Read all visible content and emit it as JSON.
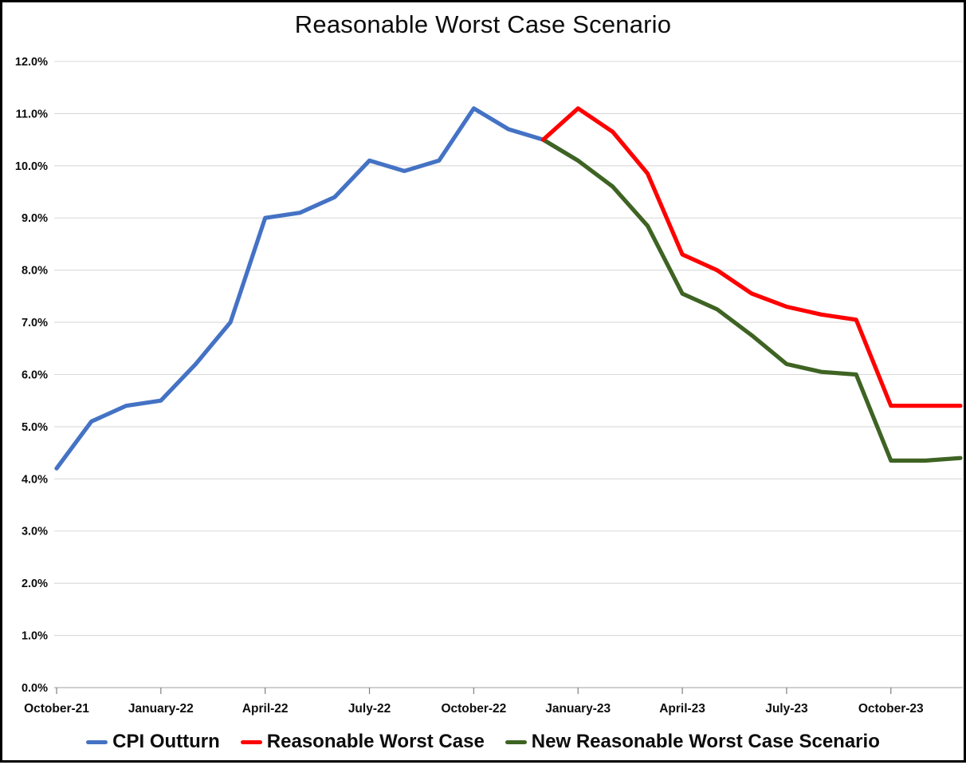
{
  "title": "Reasonable Worst Case Scenario",
  "chart_data": {
    "type": "line",
    "categories": [
      "October-21",
      "November-21",
      "December-21",
      "January-22",
      "February-22",
      "March-22",
      "April-22",
      "May-22",
      "June-22",
      "July-22",
      "August-22",
      "September-22",
      "October-22",
      "November-22",
      "December-22",
      "January-23",
      "February-23",
      "March-23",
      "April-23",
      "May-23",
      "June-23",
      "July-23",
      "August-23",
      "September-23",
      "October-23",
      "November-23",
      "December-23"
    ],
    "x_tick_labels": [
      "October-21",
      "January-22",
      "April-22",
      "July-22",
      "October-22",
      "January-23",
      "April-23",
      "July-23",
      "October-23"
    ],
    "x_tick_every": 3,
    "y_tick_labels": [
      "0.0%",
      "1.0%",
      "2.0%",
      "3.0%",
      "4.0%",
      "5.0%",
      "6.0%",
      "7.0%",
      "8.0%",
      "9.0%",
      "10.0%",
      "11.0%",
      "12.0%"
    ],
    "ylim": [
      0,
      12
    ],
    "y_unit": "%",
    "grid": "horizontal",
    "gridline_color": "#D9D9D9",
    "axis_color": "#BFBFBF",
    "tick_color": "#7F7F7F",
    "legend_position": "bottom",
    "series": [
      {
        "name": "CPI Outturn",
        "color": "#4472C4",
        "values": [
          4.2,
          5.1,
          5.4,
          5.5,
          6.2,
          7.0,
          9.0,
          9.1,
          9.4,
          10.1,
          9.9,
          10.1,
          11.1,
          10.7,
          10.5,
          10.1,
          null,
          null,
          null,
          null,
          null,
          null,
          null,
          null,
          null,
          null,
          null
        ]
      },
      {
        "name": "Reasonable Worst Case",
        "color": "#FF0000",
        "values": [
          null,
          null,
          null,
          null,
          null,
          null,
          null,
          null,
          null,
          null,
          null,
          null,
          null,
          null,
          10.5,
          11.1,
          10.65,
          9.85,
          8.3,
          8.0,
          7.55,
          7.3,
          7.15,
          7.05,
          5.4,
          5.4,
          5.4
        ]
      },
      {
        "name": "New Reasonable Worst Case Scenario",
        "color": "#3E6323",
        "values": [
          null,
          null,
          null,
          null,
          null,
          null,
          null,
          null,
          null,
          null,
          null,
          null,
          null,
          null,
          10.5,
          10.1,
          9.6,
          8.85,
          7.55,
          7.25,
          6.75,
          6.2,
          6.05,
          6.0,
          4.35,
          4.35,
          4.4
        ]
      }
    ]
  }
}
